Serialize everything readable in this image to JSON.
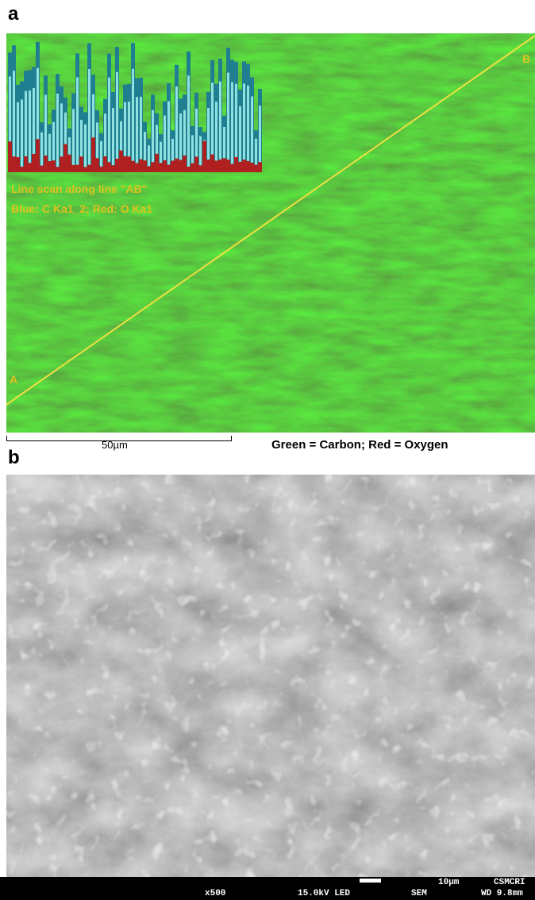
{
  "panel_a": {
    "label": "a",
    "point_a": "A",
    "point_b": "B",
    "inset_title": "Line scan along line \"AB\"",
    "inset_legend": "Blue: C Ka1_2; Red: O Ka1",
    "scale_bar": "50µm",
    "caption": "Green = Carbon; Red = Oxygen"
  },
  "panel_b": {
    "label": "b",
    "info_bar": {
      "magnification": "x500",
      "voltage": "15.0kV LED",
      "mode": "SEM",
      "scale": "10µm",
      "institution": "CSMCRI",
      "working_distance": "WD 9.8mm"
    }
  }
}
